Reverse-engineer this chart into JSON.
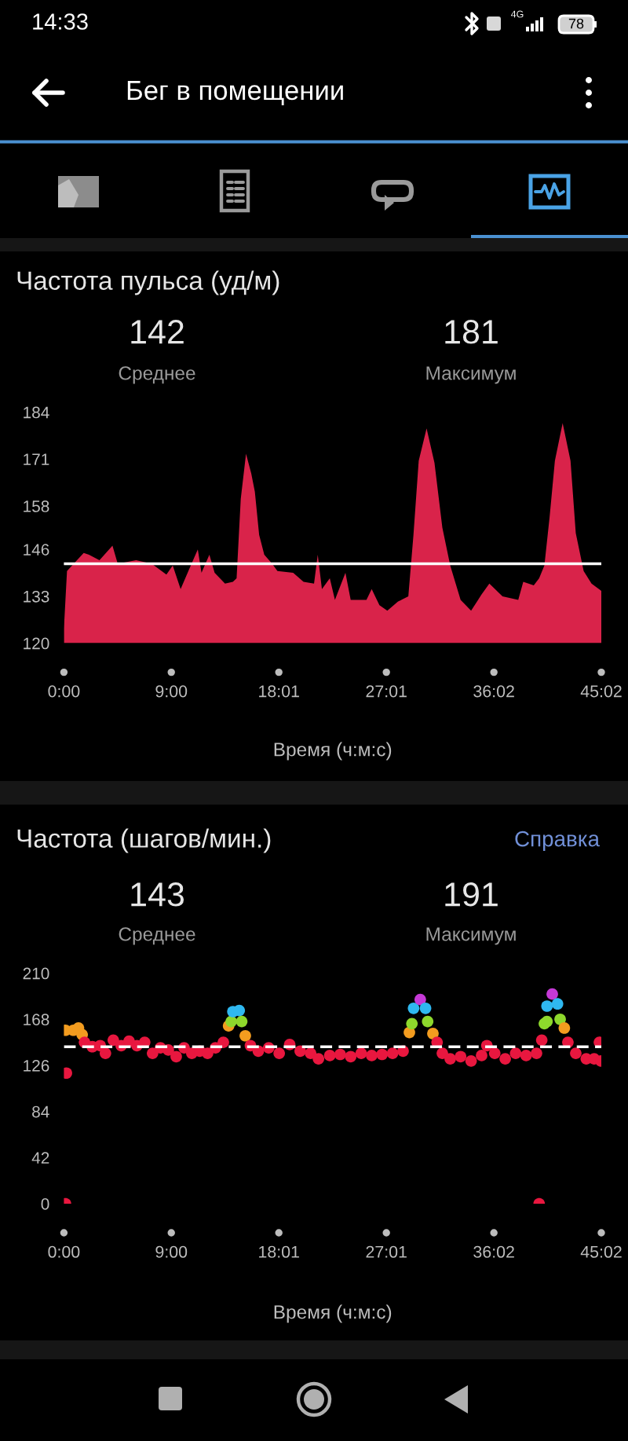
{
  "chart_data": [
    {
      "type": "area",
      "title": "Частота пульса (уд/м)",
      "xlabel": "Время (ч:м:с)",
      "annotations": [
        "14:33",
        "4G",
        "78",
        "Бег в помещении",
        "142",
        "Среднее",
        "181",
        "Максимум"
      ],
      "x": [
        0,
        0.26,
        1.66,
        2.1,
        2.98,
        4.07,
        4.51,
        6.05,
        7.36,
        8.59,
        9.12,
        9.78,
        10.43,
        11.22,
        11.53,
        12.19,
        12.63,
        13.5,
        14.16,
        14.47,
        14.82,
        15.26,
        15.7,
        16.0,
        16.36,
        16.79,
        17.45,
        17.89,
        19.21,
        20.08,
        20.96,
        21.27,
        21.62,
        22.28,
        22.71,
        23.59,
        24.03,
        25.35,
        25.79,
        26.44,
        27.1,
        27.98,
        28.86,
        29.29,
        29.73,
        30.39,
        31.05,
        31.71,
        32.37,
        33.24,
        34.12,
        35.0,
        35.65,
        36.75,
        38.07,
        38.49,
        39.37,
        39.82,
        40.26,
        40.7,
        41.14,
        41.79,
        42.45,
        42.89,
        43.55,
        44.21,
        45.03
      ],
      "values": [
        124,
        140,
        145,
        144.5,
        143,
        147,
        142,
        143,
        142,
        139,
        141.5,
        135,
        140,
        146,
        139.5,
        144.5,
        139.5,
        136.5,
        137,
        138,
        160,
        172.5,
        167,
        162,
        150,
        144.5,
        142,
        140,
        139.5,
        137,
        136.5,
        144.5,
        135,
        138,
        132,
        139.5,
        132,
        132,
        135,
        130.5,
        129,
        131.5,
        133,
        150,
        170.5,
        179.5,
        170,
        152,
        141.5,
        132,
        129,
        133.5,
        136.5,
        133,
        132,
        137,
        136,
        138,
        141.5,
        155,
        170.5,
        181,
        170.5,
        150.5,
        140,
        136.5,
        134.5
      ],
      "color": "#d9234a",
      "xlim": [
        0,
        45.03
      ],
      "ylim": [
        120,
        184
      ],
      "xticks": [
        {
          "value": 0,
          "label": "0:00"
        },
        {
          "value": 9,
          "label": "9:00"
        },
        {
          "value": 18.01,
          "label": "18:01"
        },
        {
          "value": 27.02,
          "label": "27:01"
        },
        {
          "value": 36.03,
          "label": "36:02"
        },
        {
          "value": 45.03,
          "label": "45:02"
        }
      ],
      "yticks": [
        120,
        133,
        146,
        158,
        171,
        184
      ],
      "ref_lines": [
        {
          "axis": "y",
          "value": 142,
          "color": "#ffffff",
          "line_style": "solid"
        }
      ]
    },
    {
      "type": "scatter",
      "title": "Частота (шагов/мин.)",
      "xlabel": "Время (ч:м:с)",
      "annotations": [
        "Справка",
        "143",
        "Среднее",
        "191",
        "Максимум"
      ],
      "x": [
        0.13,
        0.13,
        0.21,
        0.79,
        1.22,
        1.53,
        1.73,
        2.38,
        3.04,
        3.48,
        4.14,
        4.8,
        5.46,
        6.12,
        6.77,
        7.43,
        8.09,
        8.75,
        9.41,
        10.07,
        10.72,
        11.38,
        12.04,
        12.7,
        13.36,
        13.8,
        14.02,
        14.16,
        14.69,
        14.9,
        15.2,
        15.63,
        16.29,
        17.16,
        18.04,
        18.92,
        19.8,
        20.67,
        21.33,
        22.28,
        23.15,
        24.03,
        24.91,
        25.79,
        26.66,
        27.54,
        28.42,
        28.95,
        29.16,
        29.3,
        29.86,
        30.3,
        30.48,
        30.92,
        31.27,
        31.71,
        32.37,
        33.24,
        34.12,
        35.0,
        35.44,
        36.1,
        36.98,
        37.85,
        38.73,
        39.6,
        39.82,
        40.04,
        40.26,
        40.48,
        40.48,
        40.92,
        41.36,
        41.58,
        41.93,
        42.23,
        42.89,
        43.77,
        44.43,
        44.87,
        45.0
      ],
      "values": [
        158,
        0,
        119,
        158,
        160,
        154,
        147,
        143,
        144,
        137,
        149,
        144,
        148,
        144,
        147,
        137,
        142,
        140,
        134,
        142,
        137,
        139,
        137,
        142,
        147,
        162,
        166,
        175,
        176,
        166,
        153,
        144,
        139,
        142,
        137,
        145,
        139,
        137,
        132,
        135,
        136,
        134,
        137,
        135,
        136,
        137,
        139,
        156,
        164,
        178,
        186,
        178,
        166,
        155,
        147,
        137,
        132,
        134,
        130,
        135,
        144,
        137,
        132,
        137,
        135,
        137,
        0,
        149,
        164,
        180,
        166,
        191,
        182,
        168,
        160,
        147,
        137,
        132,
        132,
        147,
        130
      ],
      "colors": [
        "#f39c1f",
        "#e8173f",
        "#e8173f",
        "#f39c1f",
        "#f39c1f",
        "#f39c1f",
        "#e8173f",
        "#e8173f",
        "#e8173f",
        "#e8173f",
        "#e8173f",
        "#e8173f",
        "#e8173f",
        "#e8173f",
        "#e8173f",
        "#e8173f",
        "#e8173f",
        "#e8173f",
        "#e8173f",
        "#e8173f",
        "#e8173f",
        "#e8173f",
        "#e8173f",
        "#e8173f",
        "#e8173f",
        "#f39c1f",
        "#8ed82c",
        "#2fb8f0",
        "#2fb8f0",
        "#8ed82c",
        "#f39c1f",
        "#e8173f",
        "#e8173f",
        "#e8173f",
        "#e8173f",
        "#e8173f",
        "#e8173f",
        "#e8173f",
        "#e8173f",
        "#e8173f",
        "#e8173f",
        "#e8173f",
        "#e8173f",
        "#e8173f",
        "#e8173f",
        "#e8173f",
        "#e8173f",
        "#f39c1f",
        "#8ed82c",
        "#2fb8f0",
        "#c539d6",
        "#2fb8f0",
        "#8ed82c",
        "#f39c1f",
        "#e8173f",
        "#e8173f",
        "#e8173f",
        "#e8173f",
        "#e8173f",
        "#e8173f",
        "#e8173f",
        "#e8173f",
        "#e8173f",
        "#e8173f",
        "#e8173f",
        "#e8173f",
        "#e8173f",
        "#e8173f",
        "#8ed82c",
        "#2fb8f0",
        "#8ed82c",
        "#c539d6",
        "#2fb8f0",
        "#8ed82c",
        "#f39c1f",
        "#e8173f",
        "#e8173f",
        "#e8173f",
        "#e8173f",
        "#e8173f",
        "#e8173f"
      ],
      "marker": "circle",
      "xlim": [
        0,
        45.03
      ],
      "ylim": [
        0,
        210
      ],
      "xticks": [
        {
          "value": 0,
          "label": "0:00"
        },
        {
          "value": 9,
          "label": "9:00"
        },
        {
          "value": 18.01,
          "label": "18:01"
        },
        {
          "value": 27.02,
          "label": "27:01"
        },
        {
          "value": 36.03,
          "label": "36:02"
        },
        {
          "value": 45.03,
          "label": "45:02"
        }
      ],
      "yticks": [
        0,
        42,
        84,
        126,
        168,
        210
      ],
      "ref_lines": [
        {
          "axis": "y",
          "value": 143,
          "color": "#ffffff",
          "line_style": "dashed"
        }
      ]
    }
  ]
}
